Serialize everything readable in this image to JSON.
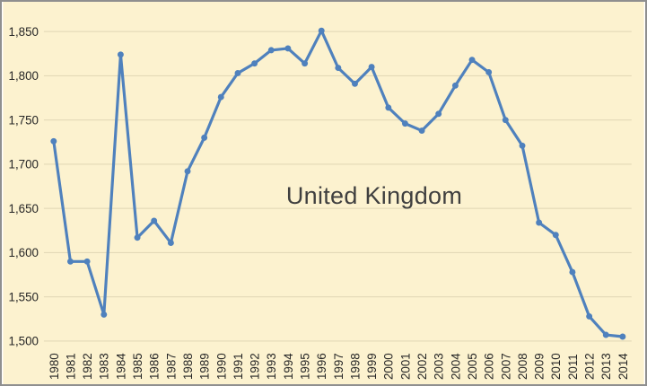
{
  "style": {
    "background": "#FCF2CF",
    "frame_border": "#8F8F8F",
    "gridline": "#E3D9B7",
    "line": "#4F81BD",
    "marker": "#4F81BD",
    "axis_text": "#262626",
    "title_text": "#3F3F3F"
  },
  "chart_data": {
    "type": "line",
    "title": "United Kingdom",
    "xlabel": "",
    "ylabel": "",
    "x": [
      1980,
      1981,
      1982,
      1983,
      1984,
      1985,
      1986,
      1987,
      1988,
      1989,
      1990,
      1991,
      1992,
      1993,
      1994,
      1995,
      1996,
      1997,
      1998,
      1999,
      2000,
      2001,
      2002,
      2003,
      2004,
      2005,
      2006,
      2007,
      2008,
      2009,
      2010,
      2011,
      2012,
      2013,
      2014
    ],
    "series": [
      {
        "name": "United Kingdom",
        "values": [
          1726,
          1590,
          1590,
          1530,
          1824,
          1617,
          1636,
          1611,
          1692,
          1730,
          1776,
          1803,
          1814,
          1829,
          1831,
          1814,
          1851,
          1809,
          1791,
          1810,
          1764,
          1746,
          1738,
          1757,
          1789,
          1818,
          1804,
          1750,
          1721,
          1634,
          1620,
          1578,
          1528,
          1507,
          1505
        ]
      }
    ],
    "ylim": [
      1500,
      1850
    ],
    "ytick_step": 50,
    "ytick_labels": [
      "1,500",
      "1,550",
      "1,600",
      "1,650",
      "1,700",
      "1,750",
      "1,800",
      "1,850"
    ],
    "grid": true,
    "legend_position": "none",
    "marker": "circle",
    "x_label_rotation": 90
  }
}
